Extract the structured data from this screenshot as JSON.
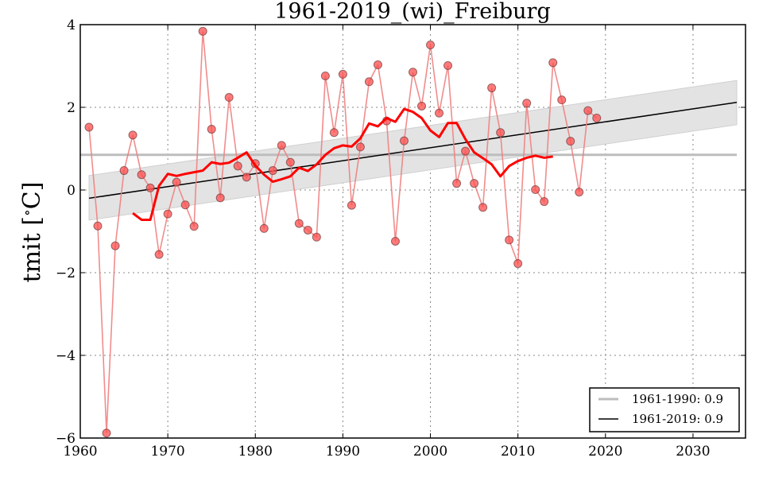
{
  "chart_data": {
    "type": "line",
    "title": "1961-2019_(wi)_Freiburg",
    "xlabel": "",
    "ylabel": "tmit [ ∘C]",
    "ylabel_parts": {
      "main": "tmit [",
      "degree": "∘",
      "unit": "C]"
    },
    "xlim": [
      1960,
      2036
    ],
    "ylim": [
      -6,
      4
    ],
    "x_ticks": [
      1960,
      1970,
      1980,
      1990,
      2000,
      2010,
      2020,
      2030
    ],
    "x_tick_labels": [
      "1960",
      "1970",
      "1980",
      "1990",
      "2000",
      "2010",
      "2020",
      "2030"
    ],
    "y_ticks": [
      -6,
      -4,
      -2,
      0,
      2,
      4
    ],
    "y_tick_labels": [
      "−6",
      "−4",
      "−2",
      "0",
      "2",
      "4"
    ],
    "grid": true,
    "legend_position": "lower-right",
    "colors": {
      "points": "#ff4d4d",
      "points_line": "#f08080",
      "running_mean": "#ff0000",
      "trend": "#000000",
      "band": "#e3e3e3",
      "reference_mean": "#bdbdbd"
    },
    "series": [
      {
        "name": "annual",
        "x": [
          1961,
          1962,
          1963,
          1964,
          1965,
          1966,
          1967,
          1968,
          1969,
          1970,
          1971,
          1972,
          1973,
          1974,
          1975,
          1976,
          1977,
          1978,
          1979,
          1980,
          1981,
          1982,
          1983,
          1984,
          1985,
          1986,
          1987,
          1988,
          1989,
          1990,
          1991,
          1992,
          1993,
          1994,
          1995,
          1996,
          1997,
          1998,
          1999,
          2000,
          2001,
          2002,
          2003,
          2004,
          2005,
          2006,
          2007,
          2008,
          2009,
          2010,
          2011,
          2012,
          2013,
          2014,
          2015,
          2016,
          2017,
          2018,
          2019
        ],
        "values": [
          1.52,
          -0.87,
          -5.88,
          -1.35,
          0.47,
          1.33,
          0.37,
          0.05,
          -1.56,
          -0.58,
          0.19,
          -0.36,
          -0.88,
          3.84,
          1.47,
          -0.19,
          2.24,
          0.58,
          0.31,
          0.64,
          -0.93,
          0.47,
          1.08,
          0.67,
          -0.81,
          -0.97,
          -1.14,
          2.76,
          1.39,
          2.8,
          -0.37,
          1.04,
          2.62,
          3.03,
          1.67,
          -1.24,
          1.19,
          2.85,
          2.03,
          3.51,
          1.86,
          3.01,
          0.16,
          0.94,
          0.16,
          -0.42,
          2.47,
          1.39,
          -1.21,
          -1.78,
          2.1,
          0.01,
          -0.28,
          3.08,
          2.18,
          1.18,
          -0.05,
          1.92,
          1.74
        ]
      },
      {
        "name": "running_mean",
        "x": [
          1966,
          1967,
          1968,
          1969,
          1970,
          1971,
          1972,
          1973,
          1974,
          1975,
          1976,
          1977,
          1978,
          1979,
          1980,
          1981,
          1982,
          1983,
          1984,
          1985,
          1986,
          1987,
          1988,
          1989,
          1990,
          1991,
          1992,
          1993,
          1994,
          1995,
          1996,
          1997,
          1998,
          1999,
          2000,
          2001,
          2002,
          2003,
          2004,
          2005,
          2006,
          2007,
          2008,
          2009,
          2010,
          2011,
          2012,
          2013,
          2014
        ],
        "values": [
          -0.56,
          -0.72,
          -0.72,
          0.1,
          0.39,
          0.34,
          0.39,
          0.43,
          0.47,
          0.67,
          0.63,
          0.66,
          0.78,
          0.91,
          0.59,
          0.37,
          0.2,
          0.26,
          0.33,
          0.54,
          0.46,
          0.62,
          0.85,
          1.01,
          1.08,
          1.05,
          1.25,
          1.61,
          1.54,
          1.74,
          1.65,
          1.96,
          1.89,
          1.74,
          1.44,
          1.28,
          1.62,
          1.62,
          1.23,
          0.91,
          0.77,
          0.62,
          0.33,
          0.58,
          0.7,
          0.78,
          0.83,
          0.78,
          0.81
        ]
      },
      {
        "name": "1961-2019: 0.9",
        "type": "trend",
        "x": [
          1961,
          2035
        ],
        "values": [
          -0.2,
          2.12
        ],
        "band_upper": [
          0.35,
          2.65
        ],
        "band_lower": [
          -0.73,
          1.58
        ]
      },
      {
        "name": "1961-1990: 0.9",
        "type": "reference",
        "x": [
          1960,
          2035
        ],
        "values": [
          0.85,
          0.85
        ]
      }
    ],
    "legend": [
      {
        "label": "1961-1990: 0.9",
        "series": "reference"
      },
      {
        "label": "1961-2019: 0.9",
        "series": "trend"
      }
    ]
  }
}
